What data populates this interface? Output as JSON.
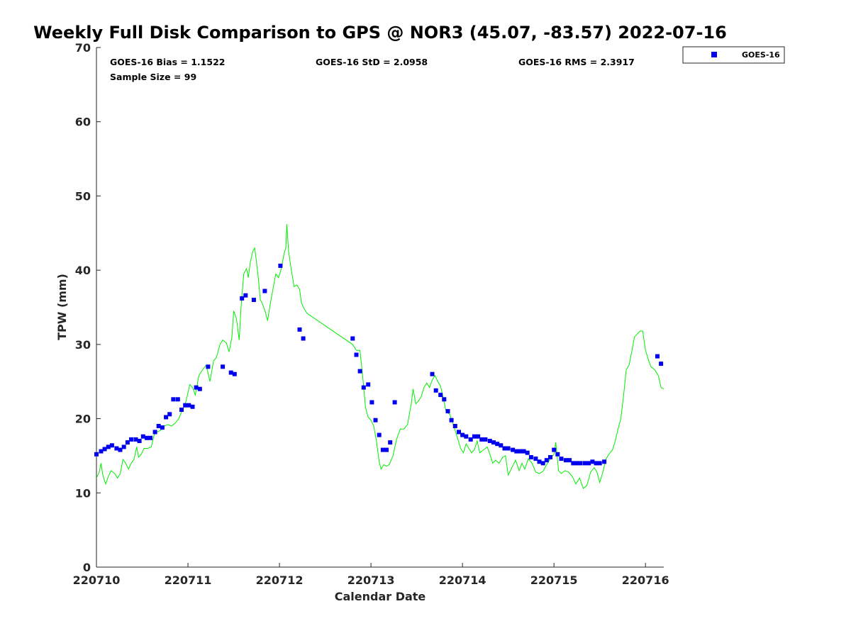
{
  "chart_data": {
    "type": "scatter",
    "title": "Weekly Full Disk Comparison to GPS @ NOR3 (45.07, -83.57) 2022-07-16",
    "xlabel": "Calendar Date",
    "ylabel": "TPW (mm)",
    "xlim": [
      0,
      6.2
    ],
    "ylim": [
      0,
      70
    ],
    "x_unit": "days since 220710",
    "x_tick_values": [
      0,
      1,
      2,
      3,
      4,
      5,
      6
    ],
    "x_tick_labels": [
      "220710",
      "220711",
      "220712",
      "220713",
      "220714",
      "220715",
      "220716"
    ],
    "y_tick_values": [
      0,
      10,
      20,
      30,
      40,
      50,
      60,
      70
    ],
    "y_tick_labels": [
      "0",
      "10",
      "20",
      "30",
      "40",
      "50",
      "60",
      "70"
    ],
    "grid": false,
    "legend": {
      "position": "top-right",
      "entries": [
        "GOES-16"
      ]
    },
    "stats": {
      "bias": "GOES-16 Bias = 1.1522",
      "std": "GOES-16 StD = 2.0958",
      "rms": "GOES-16 RMS = 2.3917",
      "sample": "Sample Size = 99"
    },
    "series": [
      {
        "name": "GOES-16",
        "kind": "scatter",
        "marker": "square",
        "color": "#0000ee",
        "points": [
          [
            0.0,
            15.2
          ],
          [
            0.05,
            15.6
          ],
          [
            0.09,
            15.9
          ],
          [
            0.13,
            16.2
          ],
          [
            0.17,
            16.4
          ],
          [
            0.22,
            16.0
          ],
          [
            0.26,
            15.8
          ],
          [
            0.3,
            16.2
          ],
          [
            0.34,
            16.8
          ],
          [
            0.38,
            17.2
          ],
          [
            0.43,
            17.2
          ],
          [
            0.47,
            17.0
          ],
          [
            0.51,
            17.6
          ],
          [
            0.55,
            17.4
          ],
          [
            0.59,
            17.4
          ],
          [
            0.64,
            18.2
          ],
          [
            0.68,
            19.0
          ],
          [
            0.72,
            18.8
          ],
          [
            0.76,
            20.2
          ],
          [
            0.8,
            20.6
          ],
          [
            0.84,
            22.6
          ],
          [
            0.89,
            22.6
          ],
          [
            0.93,
            21.2
          ],
          [
            0.97,
            21.8
          ],
          [
            1.01,
            21.8
          ],
          [
            1.05,
            21.6
          ],
          [
            1.09,
            24.2
          ],
          [
            1.13,
            24.0
          ],
          [
            1.22,
            27.0
          ],
          [
            1.38,
            27.0
          ],
          [
            1.47,
            26.2
          ],
          [
            1.51,
            26.0
          ],
          [
            1.59,
            36.2
          ],
          [
            1.63,
            36.6
          ],
          [
            1.72,
            36.0
          ],
          [
            1.84,
            37.2
          ],
          [
            2.01,
            40.6
          ],
          [
            2.22,
            32.0
          ],
          [
            2.26,
            30.8
          ],
          [
            2.8,
            30.8
          ],
          [
            2.84,
            28.6
          ],
          [
            2.88,
            26.4
          ],
          [
            2.92,
            24.2
          ],
          [
            2.97,
            24.6
          ],
          [
            3.01,
            22.2
          ],
          [
            3.05,
            19.8
          ],
          [
            3.09,
            17.8
          ],
          [
            3.13,
            15.8
          ],
          [
            3.17,
            15.8
          ],
          [
            3.21,
            16.8
          ],
          [
            3.26,
            22.2
          ],
          [
            3.67,
            26.0
          ],
          [
            3.71,
            23.8
          ],
          [
            3.76,
            23.2
          ],
          [
            3.8,
            22.6
          ],
          [
            3.84,
            21.0
          ],
          [
            3.88,
            19.8
          ],
          [
            3.92,
            19.0
          ],
          [
            3.96,
            18.2
          ],
          [
            4.0,
            17.8
          ],
          [
            4.04,
            17.6
          ],
          [
            4.09,
            17.2
          ],
          [
            4.13,
            17.6
          ],
          [
            4.17,
            17.6
          ],
          [
            4.21,
            17.2
          ],
          [
            4.25,
            17.2
          ],
          [
            4.3,
            17.0
          ],
          [
            4.34,
            16.8
          ],
          [
            4.38,
            16.6
          ],
          [
            4.42,
            16.4
          ],
          [
            4.46,
            16.0
          ],
          [
            4.5,
            16.0
          ],
          [
            4.55,
            15.8
          ],
          [
            4.59,
            15.6
          ],
          [
            4.63,
            15.6
          ],
          [
            4.67,
            15.6
          ],
          [
            4.71,
            15.4
          ],
          [
            4.75,
            14.8
          ],
          [
            4.8,
            14.6
          ],
          [
            4.84,
            14.2
          ],
          [
            4.88,
            14.0
          ],
          [
            4.92,
            14.4
          ],
          [
            4.96,
            14.8
          ],
          [
            5.0,
            15.8
          ],
          [
            5.04,
            15.2
          ],
          [
            5.08,
            14.6
          ],
          [
            5.13,
            14.4
          ],
          [
            5.17,
            14.4
          ],
          [
            5.21,
            14.0
          ],
          [
            5.25,
            14.0
          ],
          [
            5.29,
            14.0
          ],
          [
            5.34,
            14.0
          ],
          [
            5.38,
            14.0
          ],
          [
            5.42,
            14.2
          ],
          [
            5.46,
            14.0
          ],
          [
            5.5,
            14.0
          ],
          [
            5.55,
            14.2
          ],
          [
            6.13,
            28.4
          ],
          [
            6.17,
            27.4
          ]
        ]
      },
      {
        "name": "GPS",
        "kind": "line",
        "color": "#00ee00",
        "points": [
          [
            0.0,
            12.0
          ],
          [
            0.03,
            12.8
          ],
          [
            0.05,
            14.0
          ],
          [
            0.07,
            12.4
          ],
          [
            0.1,
            11.2
          ],
          [
            0.13,
            12.2
          ],
          [
            0.16,
            13.0
          ],
          [
            0.2,
            12.6
          ],
          [
            0.23,
            12.0
          ],
          [
            0.26,
            12.6
          ],
          [
            0.29,
            14.5
          ],
          [
            0.32,
            14.0
          ],
          [
            0.35,
            13.2
          ],
          [
            0.38,
            14.0
          ],
          [
            0.41,
            14.5
          ],
          [
            0.44,
            16.2
          ],
          [
            0.46,
            14.8
          ],
          [
            0.49,
            15.2
          ],
          [
            0.52,
            16.0
          ],
          [
            0.56,
            16.0
          ],
          [
            0.6,
            16.2
          ],
          [
            0.63,
            17.8
          ],
          [
            0.66,
            18.2
          ],
          [
            0.7,
            18.4
          ],
          [
            0.74,
            19.0
          ],
          [
            0.78,
            19.2
          ],
          [
            0.82,
            19.0
          ],
          [
            0.86,
            19.4
          ],
          [
            0.9,
            20.0
          ],
          [
            0.94,
            21.2
          ],
          [
            0.98,
            22.4
          ],
          [
            1.02,
            24.6
          ],
          [
            1.05,
            24.2
          ],
          [
            1.08,
            23.2
          ],
          [
            1.12,
            25.8
          ],
          [
            1.16,
            26.6
          ],
          [
            1.2,
            27.2
          ],
          [
            1.24,
            25.0
          ],
          [
            1.28,
            27.8
          ],
          [
            1.31,
            28.2
          ],
          [
            1.35,
            30.0
          ],
          [
            1.38,
            30.6
          ],
          [
            1.42,
            30.2
          ],
          [
            1.45,
            29.0
          ],
          [
            1.48,
            31.0
          ],
          [
            1.5,
            34.5
          ],
          [
            1.53,
            33.5
          ],
          [
            1.56,
            30.6
          ],
          [
            1.58,
            35.0
          ],
          [
            1.61,
            39.5
          ],
          [
            1.64,
            40.2
          ],
          [
            1.66,
            39.0
          ],
          [
            1.68,
            41.0
          ],
          [
            1.71,
            42.6
          ],
          [
            1.73,
            43.0
          ],
          [
            1.75,
            41.0
          ],
          [
            1.77,
            38.8
          ],
          [
            1.79,
            36.0
          ],
          [
            1.81,
            35.6
          ],
          [
            1.84,
            34.6
          ],
          [
            1.87,
            33.2
          ],
          [
            1.9,
            35.5
          ],
          [
            1.93,
            37.5
          ],
          [
            1.96,
            39.5
          ],
          [
            1.99,
            39.0
          ],
          [
            2.02,
            40.2
          ],
          [
            2.05,
            42.2
          ],
          [
            2.07,
            43.0
          ],
          [
            2.08,
            46.2
          ],
          [
            2.1,
            42.5
          ],
          [
            2.13,
            40.0
          ],
          [
            2.16,
            37.8
          ],
          [
            2.19,
            38.0
          ],
          [
            2.22,
            37.4
          ],
          [
            2.24,
            35.6
          ],
          [
            2.27,
            34.8
          ],
          [
            2.3,
            34.2
          ],
          [
            2.8,
            30.0
          ],
          [
            2.84,
            29.2
          ],
          [
            2.88,
            29.2
          ],
          [
            2.91,
            25.6
          ],
          [
            2.94,
            21.5
          ],
          [
            2.97,
            20.2
          ],
          [
            3.0,
            19.8
          ],
          [
            3.03,
            19.0
          ],
          [
            3.06,
            17.0
          ],
          [
            3.09,
            14.2
          ],
          [
            3.11,
            13.2
          ],
          [
            3.14,
            13.8
          ],
          [
            3.17,
            13.6
          ],
          [
            3.2,
            13.8
          ],
          [
            3.24,
            15.0
          ],
          [
            3.28,
            17.2
          ],
          [
            3.32,
            18.6
          ],
          [
            3.36,
            18.6
          ],
          [
            3.4,
            19.2
          ],
          [
            3.44,
            22.0
          ],
          [
            3.46,
            24.0
          ],
          [
            3.49,
            22.0
          ],
          [
            3.52,
            22.4
          ],
          [
            3.55,
            23.0
          ],
          [
            3.58,
            24.2
          ],
          [
            3.61,
            24.8
          ],
          [
            3.64,
            24.2
          ],
          [
            3.67,
            25.2
          ],
          [
            3.7,
            25.8
          ],
          [
            3.73,
            25.0
          ],
          [
            3.76,
            24.4
          ],
          [
            3.79,
            22.8
          ],
          [
            3.82,
            21.0
          ],
          [
            3.86,
            20.6
          ],
          [
            3.89,
            19.6
          ],
          [
            3.92,
            18.4
          ],
          [
            3.95,
            17.2
          ],
          [
            3.98,
            16.0
          ],
          [
            4.01,
            15.4
          ],
          [
            4.04,
            16.6
          ],
          [
            4.07,
            16.0
          ],
          [
            4.1,
            15.4
          ],
          [
            4.13,
            15.8
          ],
          [
            4.16,
            17.0
          ],
          [
            4.19,
            15.4
          ],
          [
            4.23,
            15.8
          ],
          [
            4.27,
            16.2
          ],
          [
            4.3,
            15.2
          ],
          [
            4.33,
            14.0
          ],
          [
            4.36,
            14.4
          ],
          [
            4.4,
            14.0
          ],
          [
            4.44,
            14.8
          ],
          [
            4.47,
            15.0
          ],
          [
            4.5,
            12.4
          ],
          [
            4.54,
            13.4
          ],
          [
            4.58,
            14.4
          ],
          [
            4.62,
            13.0
          ],
          [
            4.65,
            14.0
          ],
          [
            4.68,
            13.2
          ],
          [
            4.72,
            14.6
          ],
          [
            4.76,
            14.0
          ],
          [
            4.8,
            12.8
          ],
          [
            4.84,
            12.6
          ],
          [
            4.88,
            12.9
          ],
          [
            4.92,
            13.8
          ],
          [
            4.96,
            14.6
          ],
          [
            5.0,
            15.2
          ],
          [
            5.02,
            16.8
          ],
          [
            5.05,
            13.0
          ],
          [
            5.08,
            12.6
          ],
          [
            5.12,
            13.0
          ],
          [
            5.16,
            12.8
          ],
          [
            5.2,
            12.2
          ],
          [
            5.24,
            11.2
          ],
          [
            5.28,
            12.0
          ],
          [
            5.32,
            10.6
          ],
          [
            5.36,
            11.0
          ],
          [
            5.4,
            12.8
          ],
          [
            5.44,
            13.4
          ],
          [
            5.47,
            12.8
          ],
          [
            5.5,
            11.4
          ],
          [
            5.53,
            12.6
          ],
          [
            5.57,
            14.6
          ],
          [
            5.6,
            15.2
          ],
          [
            5.64,
            15.8
          ],
          [
            5.67,
            17.0
          ],
          [
            5.7,
            18.6
          ],
          [
            5.73,
            20.0
          ],
          [
            5.76,
            23.0
          ],
          [
            5.79,
            26.6
          ],
          [
            5.82,
            27.2
          ],
          [
            5.85,
            29.0
          ],
          [
            5.88,
            31.0
          ],
          [
            5.91,
            31.4
          ],
          [
            5.94,
            31.8
          ],
          [
            5.97,
            31.8
          ],
          [
            6.0,
            29.2
          ],
          [
            6.03,
            28.0
          ],
          [
            6.06,
            27.0
          ],
          [
            6.1,
            26.6
          ],
          [
            6.14,
            25.8
          ],
          [
            6.17,
            24.2
          ],
          [
            6.2,
            24.0
          ]
        ]
      }
    ]
  }
}
